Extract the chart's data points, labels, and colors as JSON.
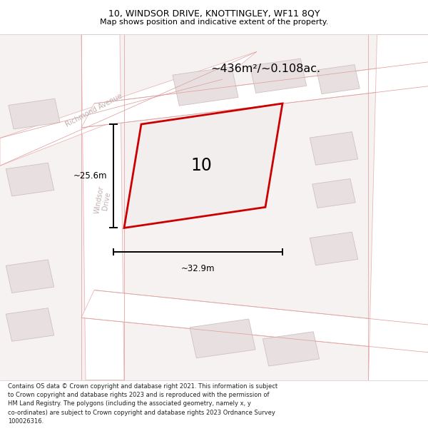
{
  "title": "10, WINDSOR DRIVE, KNOTTINGLEY, WF11 8QY",
  "subtitle": "Map shows position and indicative extent of the property.",
  "area_label": "~436m²/~0.108ac.",
  "property_number": "10",
  "width_label": "~32.9m",
  "height_label": "~25.6m",
  "footer_line1": "Contains OS data © Crown copyright and database right 2021. This information is subject",
  "footer_line2": "to Crown copyright and database rights 2023 and is reproduced with the permission of",
  "footer_line3": "HM Land Registry. The polygons (including the associated geometry, namely x, y",
  "footer_line4": "co-ordinates) are subject to Crown copyright and database rights 2023 Ordnance Survey",
  "footer_line5": "100026316.",
  "bg_color": "#f7f2f2",
  "road_fill": "#ffffff",
  "road_edge": "#e8b8b8",
  "building_fill": "#e8e0e0",
  "building_edge": "#d0c0c0",
  "property_fill": "#f2eeee",
  "property_edge": "#cc0000",
  "dim_color": "#000000",
  "street_color": "#c0b0b0",
  "title_color": "#000000",
  "footer_color": "#222222",
  "separator_color": "#cccccc"
}
